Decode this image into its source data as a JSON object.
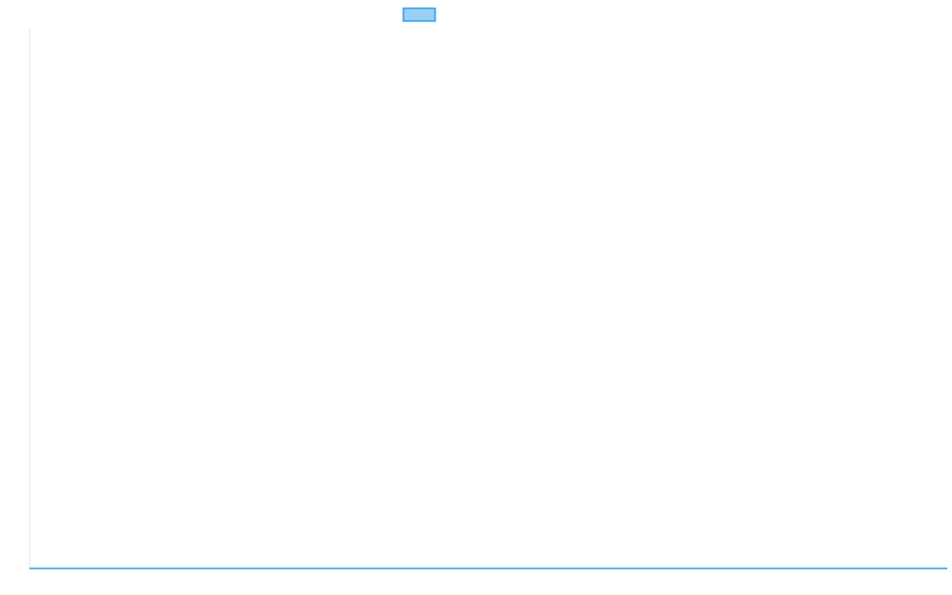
{
  "chart_data": {
    "type": "line",
    "title": "",
    "xlabel": "",
    "ylabel": "",
    "categories": [],
    "grid": false,
    "legend_placement": "top",
    "series": [
      {
        "name": "",
        "values": [],
        "color": "#36a2eb",
        "fill": "#9ad0f5"
      }
    ]
  }
}
